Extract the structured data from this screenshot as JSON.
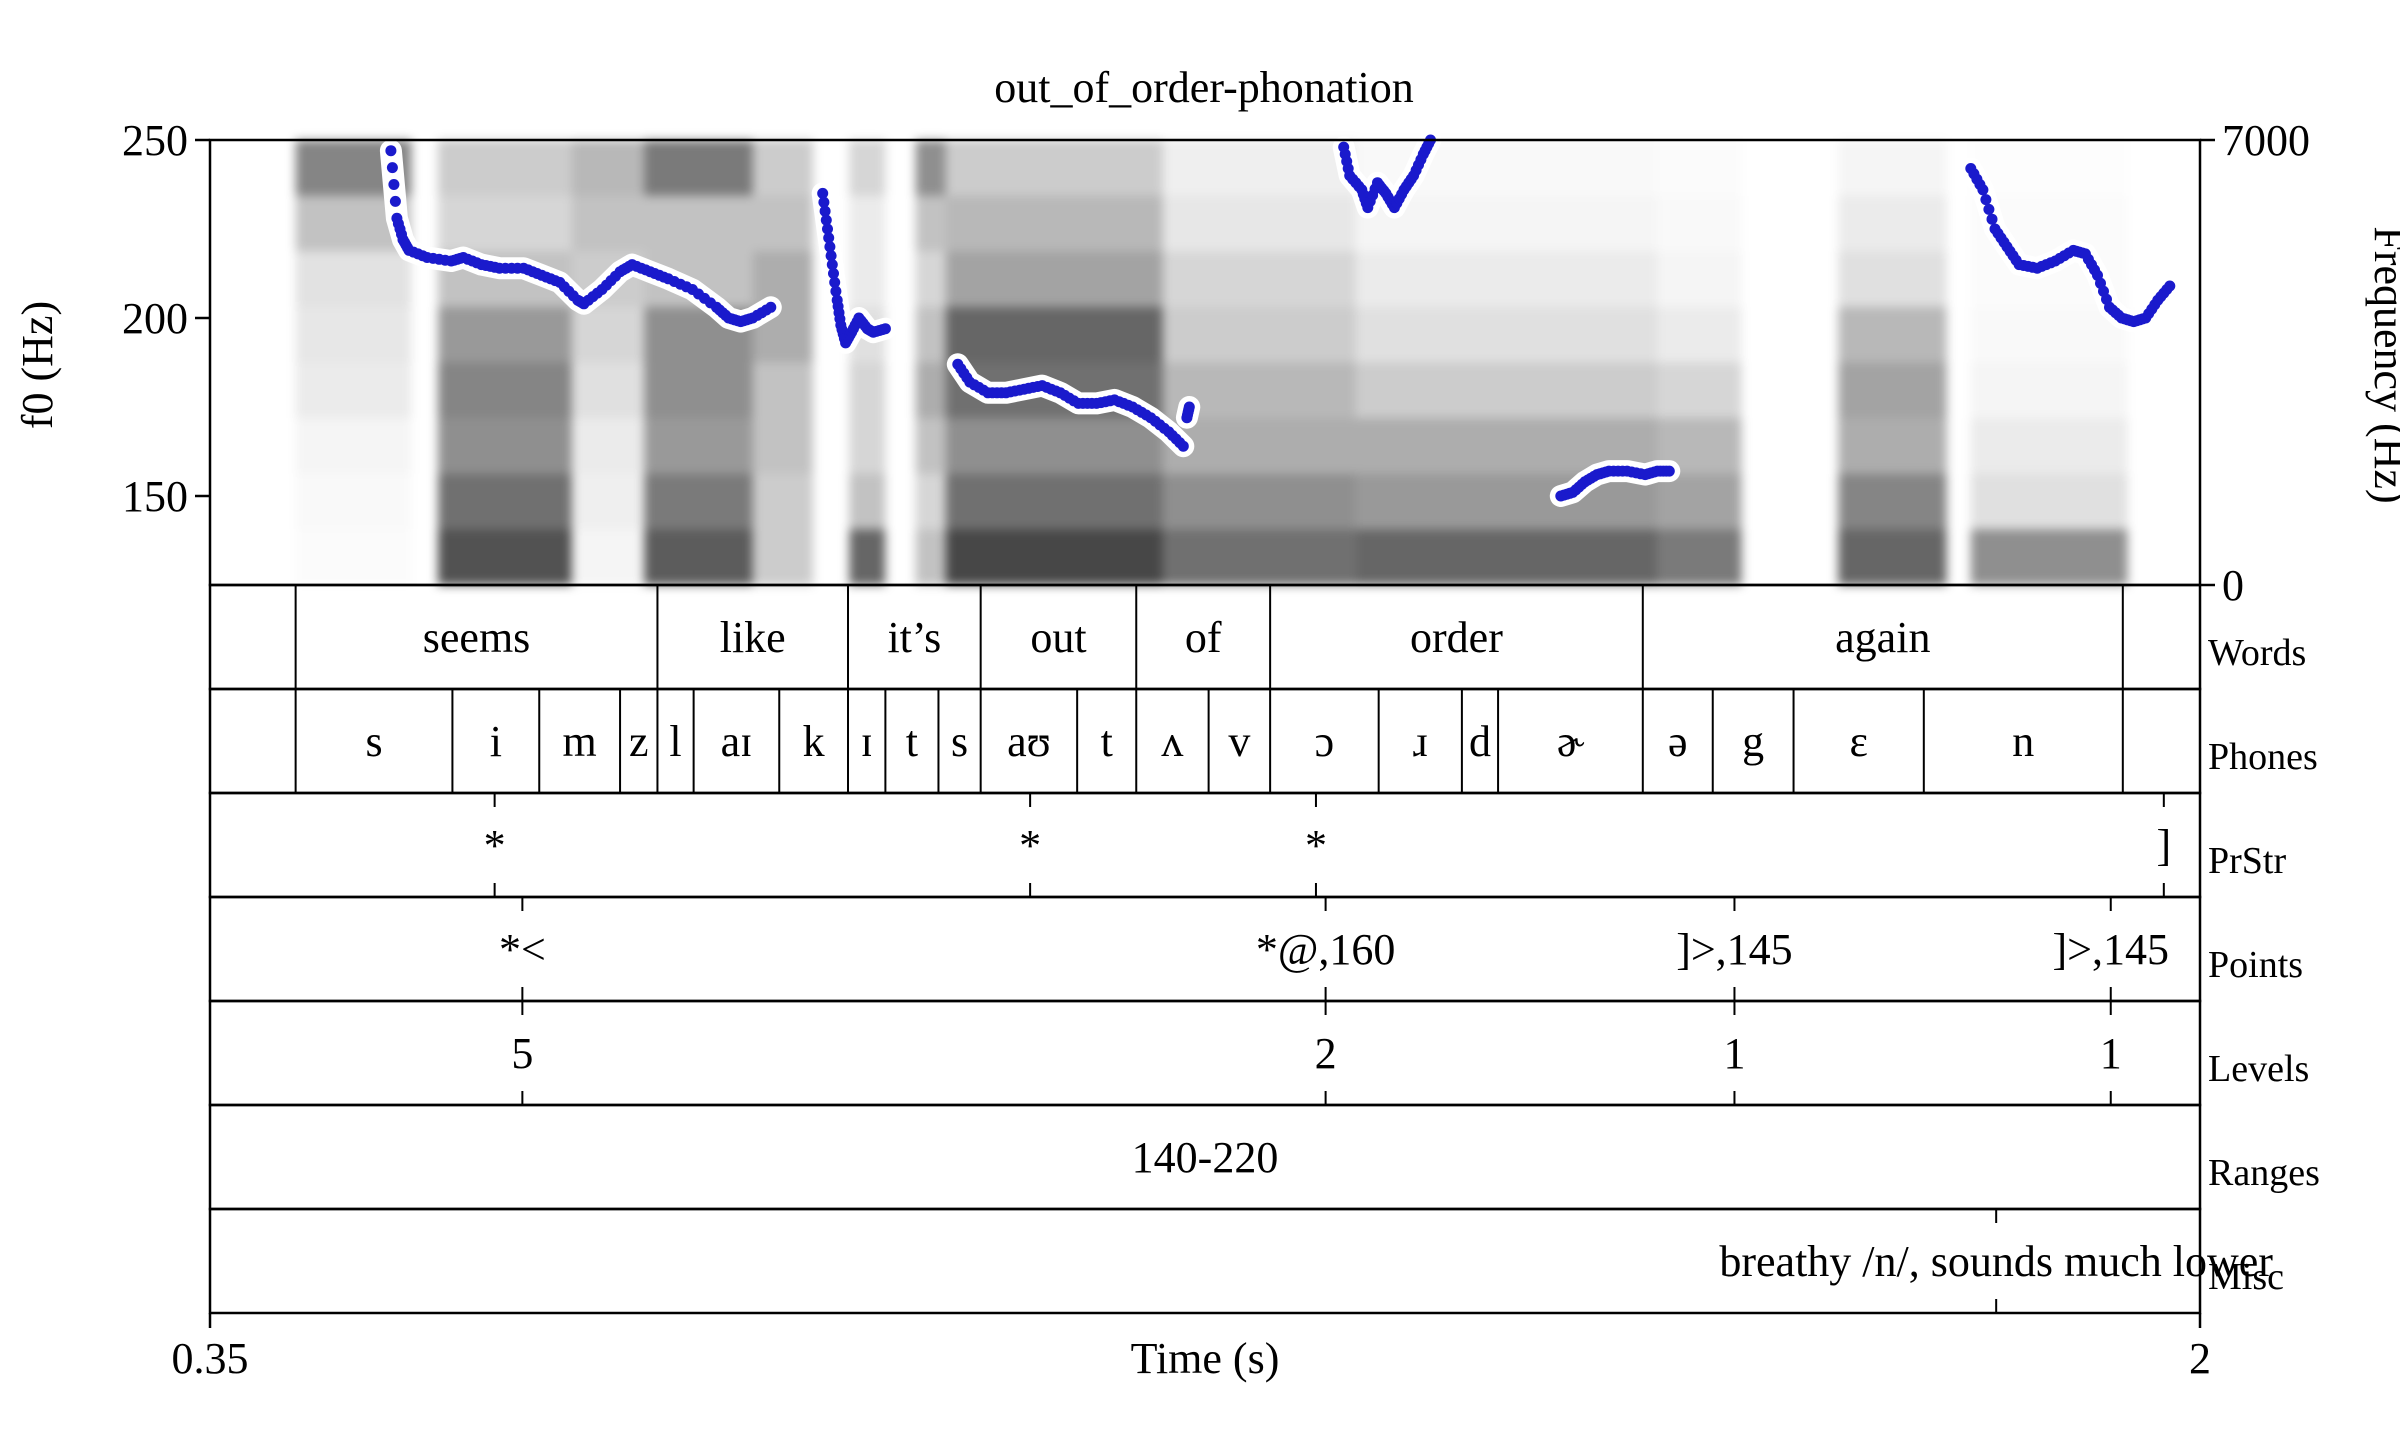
{
  "title": "out_of_order-phonation",
  "chart_data": {
    "type": "spectrogram-with-pitch-and-textgrid",
    "title": "out_of_order-phonation",
    "xlabel": "Time (s)",
    "xlim": [
      0.35,
      2
    ],
    "x_tick_labels": [
      "0.35",
      "2"
    ],
    "ylabel_left": "f0 (Hz)",
    "ylim_left": [
      125,
      250
    ],
    "y_left_ticks": [
      {
        "value": 150,
        "label": "150"
      },
      {
        "value": 200,
        "label": "200"
      },
      {
        "value": 250,
        "label": "250"
      }
    ],
    "ylabel_right": "Frequency (Hz)",
    "ylim_right": [
      0,
      7000
    ],
    "y_right_ticks": [
      {
        "value": 0,
        "label": "0"
      },
      {
        "value": 7000,
        "label": "7000"
      }
    ],
    "pitch_color": "#1a1acc",
    "spectrogram_energy": [
      {
        "t0": 0.421,
        "t1": 0.517,
        "levels": [
          0.02,
          0.03,
          0.05,
          0.1,
          0.12,
          0.14,
          0.3,
          0.6
        ]
      },
      {
        "t0": 0.539,
        "t1": 0.65,
        "levels": [
          0.85,
          0.7,
          0.55,
          0.6,
          0.5,
          0.3,
          0.2,
          0.25
        ]
      },
      {
        "t0": 0.65,
        "t1": 0.71,
        "levels": [
          0.05,
          0.08,
          0.1,
          0.15,
          0.2,
          0.25,
          0.3,
          0.35
        ]
      },
      {
        "t0": 0.71,
        "t1": 0.8,
        "levels": [
          0.8,
          0.65,
          0.5,
          0.55,
          0.55,
          0.3,
          0.3,
          0.65
        ]
      },
      {
        "t0": 0.8,
        "t1": 0.85,
        "levels": [
          0.25,
          0.25,
          0.3,
          0.3,
          0.4,
          0.4,
          0.3,
          0.25
        ]
      },
      {
        "t0": 0.88,
        "t1": 0.91,
        "levels": [
          0.75,
          0.3,
          0.2,
          0.2,
          0.15,
          0.1,
          0.1,
          0.2
        ]
      },
      {
        "t0": 0.935,
        "t1": 0.96,
        "levels": [
          0.3,
          0.2,
          0.3,
          0.4,
          0.3,
          0.2,
          0.3,
          0.55
        ]
      },
      {
        "t0": 0.96,
        "t1": 1.14,
        "levels": [
          0.9,
          0.7,
          0.55,
          0.7,
          0.75,
          0.45,
          0.35,
          0.25
        ]
      },
      {
        "t0": 1.14,
        "t1": 1.3,
        "levels": [
          0.7,
          0.55,
          0.4,
          0.35,
          0.25,
          0.2,
          0.12,
          0.08
        ]
      },
      {
        "t0": 1.3,
        "t1": 1.55,
        "levels": [
          0.75,
          0.5,
          0.4,
          0.25,
          0.15,
          0.1,
          0.05,
          0.03
        ]
      },
      {
        "t0": 1.55,
        "t1": 1.62,
        "levels": [
          0.65,
          0.45,
          0.35,
          0.2,
          0.1,
          0.05,
          0.03,
          0.02
        ]
      },
      {
        "t0": 1.7,
        "t1": 1.79,
        "levels": [
          0.75,
          0.6,
          0.4,
          0.45,
          0.35,
          0.15,
          0.1,
          0.05
        ]
      },
      {
        "t0": 1.81,
        "t1": 1.94,
        "levels": [
          0.55,
          0.15,
          0.1,
          0.05,
          0.03,
          0.02,
          0.02,
          0.01
        ]
      }
    ],
    "pitch_segments": [
      [
        [
          0.5,
          247
        ],
        [
          0.505,
          228
        ],
        [
          0.51,
          222
        ],
        [
          0.515,
          219
        ],
        [
          0.53,
          217
        ],
        [
          0.55,
          216
        ],
        [
          0.56,
          217
        ],
        [
          0.575,
          215
        ],
        [
          0.59,
          214
        ],
        [
          0.61,
          214
        ],
        [
          0.625,
          212
        ],
        [
          0.64,
          210
        ],
        [
          0.655,
          205
        ],
        [
          0.66,
          204
        ],
        [
          0.675,
          208
        ],
        [
          0.69,
          213
        ],
        [
          0.7,
          215
        ],
        [
          0.715,
          213
        ],
        [
          0.73,
          211
        ],
        [
          0.75,
          208
        ],
        [
          0.77,
          203
        ],
        [
          0.78,
          200
        ],
        [
          0.79,
          199
        ],
        [
          0.8,
          200
        ],
        [
          0.815,
          203
        ]
      ],
      [
        [
          0.858,
          235
        ],
        [
          0.862,
          225
        ],
        [
          0.866,
          215
        ],
        [
          0.87,
          205
        ],
        [
          0.873,
          198
        ],
        [
          0.877,
          193
        ],
        [
          0.882,
          196
        ],
        [
          0.888,
          200
        ],
        [
          0.895,
          197
        ],
        [
          0.9,
          196
        ],
        [
          0.91,
          197
        ]
      ],
      [
        [
          0.97,
          187
        ],
        [
          0.98,
          182
        ],
        [
          0.995,
          179
        ],
        [
          1.01,
          179
        ],
        [
          1.025,
          180
        ],
        [
          1.04,
          181
        ],
        [
          1.055,
          179
        ],
        [
          1.07,
          176
        ],
        [
          1.085,
          176
        ],
        [
          1.1,
          177
        ],
        [
          1.115,
          175
        ],
        [
          1.13,
          172
        ],
        [
          1.145,
          168
        ],
        [
          1.157,
          164
        ]
      ],
      [
        [
          1.16,
          172
        ],
        [
          1.162,
          175
        ]
      ],
      [
        [
          1.29,
          248
        ],
        [
          1.295,
          240
        ],
        [
          1.305,
          236
        ],
        [
          1.31,
          231
        ],
        [
          1.318,
          238
        ],
        [
          1.325,
          235
        ],
        [
          1.332,
          231
        ],
        [
          1.34,
          236
        ],
        [
          1.348,
          240
        ],
        [
          1.356,
          246
        ],
        [
          1.362,
          250
        ]
      ],
      [
        [
          1.47,
          150
        ],
        [
          1.48,
          151
        ],
        [
          1.49,
          154
        ],
        [
          1.5,
          156
        ],
        [
          1.51,
          157
        ],
        [
          1.525,
          157
        ],
        [
          1.54,
          156
        ],
        [
          1.55,
          157
        ],
        [
          1.56,
          157
        ]
      ],
      [
        [
          1.81,
          242
        ],
        [
          1.82,
          236
        ],
        [
          1.83,
          225
        ],
        [
          1.84,
          220
        ],
        [
          1.85,
          215
        ],
        [
          1.865,
          214
        ],
        [
          1.88,
          216
        ],
        [
          1.895,
          219
        ],
        [
          1.905,
          218
        ],
        [
          1.915,
          212
        ],
        [
          1.925,
          203
        ],
        [
          1.935,
          200
        ],
        [
          1.945,
          199
        ],
        [
          1.955,
          200
        ],
        [
          1.965,
          205
        ],
        [
          1.975,
          209
        ]
      ]
    ],
    "textgrid": {
      "tiers": [
        {
          "name": "Words",
          "type": "interval",
          "boundaries": [
            0.421,
            0.721,
            0.879,
            0.989,
            1.118,
            1.229,
            1.538,
            1.936
          ],
          "intervals": [
            {
              "t0": 0.421,
              "t1": 0.721,
              "label": "seems"
            },
            {
              "t0": 0.721,
              "t1": 0.879,
              "label": "like"
            },
            {
              "t0": 0.879,
              "t1": 0.989,
              "label": "it’s"
            },
            {
              "t0": 0.989,
              "t1": 1.118,
              "label": "out"
            },
            {
              "t0": 1.118,
              "t1": 1.229,
              "label": "of"
            },
            {
              "t0": 1.229,
              "t1": 1.538,
              "label": "order"
            },
            {
              "t0": 1.538,
              "t1": 1.936,
              "label": "again"
            }
          ]
        },
        {
          "name": "Phones",
          "type": "interval",
          "boundaries": [
            0.421,
            0.551,
            0.623,
            0.69,
            0.721,
            0.751,
            0.822,
            0.879,
            0.91,
            0.954,
            0.989,
            1.069,
            1.118,
            1.178,
            1.229,
            1.319,
            1.388,
            1.418,
            1.538,
            1.596,
            1.663,
            1.771,
            1.936
          ],
          "intervals": [
            {
              "t0": 0.421,
              "t1": 0.551,
              "label": "s"
            },
            {
              "t0": 0.551,
              "t1": 0.623,
              "label": "i"
            },
            {
              "t0": 0.623,
              "t1": 0.69,
              "label": "m"
            },
            {
              "t0": 0.69,
              "t1": 0.721,
              "label": "z"
            },
            {
              "t0": 0.721,
              "t1": 0.751,
              "label": "l"
            },
            {
              "t0": 0.751,
              "t1": 0.822,
              "label": "aɪ"
            },
            {
              "t0": 0.822,
              "t1": 0.879,
              "label": "k"
            },
            {
              "t0": 0.879,
              "t1": 0.91,
              "label": "ɪ"
            },
            {
              "t0": 0.91,
              "t1": 0.954,
              "label": "t"
            },
            {
              "t0": 0.954,
              "t1": 0.989,
              "label": "s"
            },
            {
              "t0": 0.989,
              "t1": 1.069,
              "label": "aʊ"
            },
            {
              "t0": 1.069,
              "t1": 1.118,
              "label": "t"
            },
            {
              "t0": 1.118,
              "t1": 1.178,
              "label": "ʌ"
            },
            {
              "t0": 1.178,
              "t1": 1.229,
              "label": "v"
            },
            {
              "t0": 1.229,
              "t1": 1.319,
              "label": "ɔ"
            },
            {
              "t0": 1.319,
              "t1": 1.388,
              "label": "ɹ"
            },
            {
              "t0": 1.388,
              "t1": 1.418,
              "label": "d"
            },
            {
              "t0": 1.418,
              "t1": 1.538,
              "label": "ɚ"
            },
            {
              "t0": 1.538,
              "t1": 1.596,
              "label": "ə"
            },
            {
              "t0": 1.596,
              "t1": 1.663,
              "label": "g"
            },
            {
              "t0": 1.663,
              "t1": 1.771,
              "label": "ɛ"
            },
            {
              "t0": 1.771,
              "t1": 1.936,
              "label": "n"
            }
          ]
        },
        {
          "name": "PrStr",
          "type": "point",
          "points": [
            {
              "t": 0.586,
              "label": "*"
            },
            {
              "t": 1.03,
              "label": "*"
            },
            {
              "t": 1.267,
              "label": "*"
            },
            {
              "t": 1.97,
              "label": "]"
            }
          ]
        },
        {
          "name": "Points",
          "type": "point",
          "points": [
            {
              "t": 0.609,
              "label": "*<"
            },
            {
              "t": 1.275,
              "label": "*@,160"
            },
            {
              "t": 1.614,
              "label": "]>,145"
            },
            {
              "t": 1.926,
              "label": "]>,145"
            }
          ]
        },
        {
          "name": "Levels",
          "type": "point",
          "points": [
            {
              "t": 0.609,
              "label": "5"
            },
            {
              "t": 1.275,
              "label": "2"
            },
            {
              "t": 1.614,
              "label": "1"
            },
            {
              "t": 1.926,
              "label": "1"
            }
          ]
        },
        {
          "name": "Ranges",
          "type": "interval",
          "boundaries": [],
          "intervals": [
            {
              "t0": 0.35,
              "t1": 2.0,
              "label": "140-220"
            }
          ]
        },
        {
          "name": "Misc",
          "type": "point",
          "points": [
            {
              "t": 1.831,
              "label": "breathy /n/, sounds much lower"
            }
          ]
        }
      ]
    }
  }
}
